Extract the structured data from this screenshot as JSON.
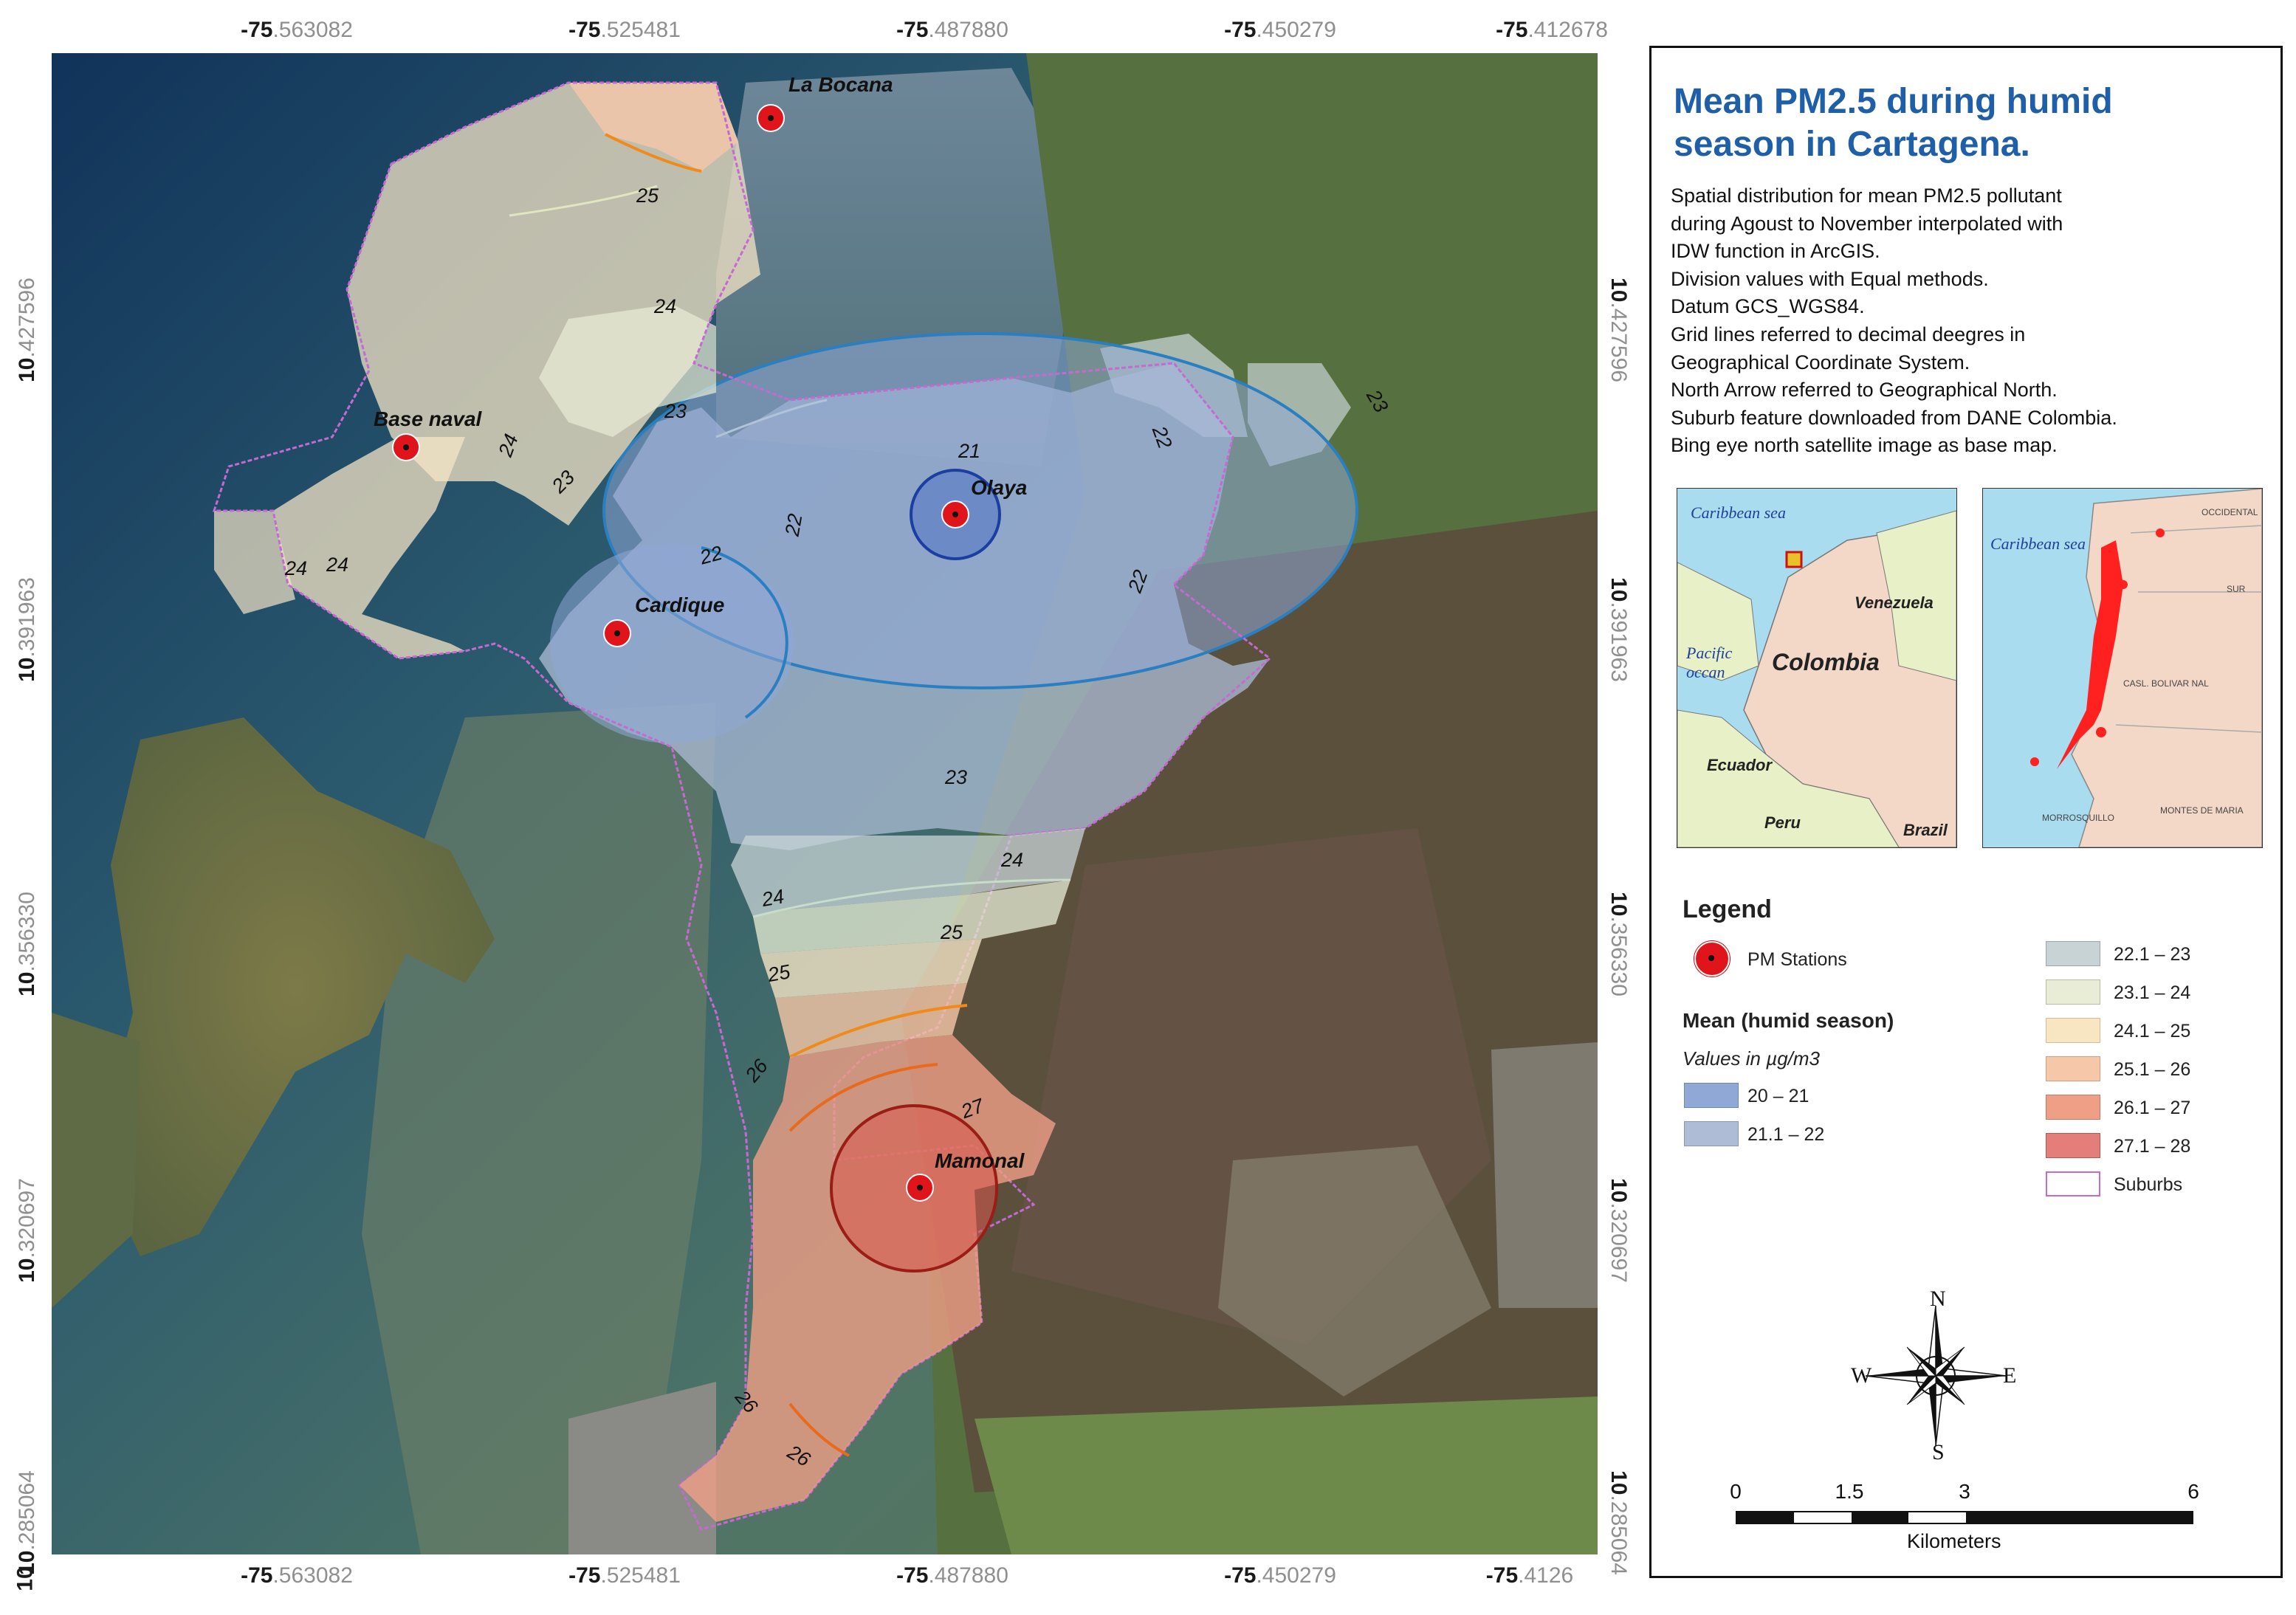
{
  "coords": {
    "lon_labels": [
      {
        "bold": "-75",
        "rest": ".563082"
      },
      {
        "bold": "-75",
        "rest": ".525481"
      },
      {
        "bold": "-75",
        "rest": ".487880"
      },
      {
        "bold": "-75",
        "rest": ".450279"
      },
      {
        "bold": "-75",
        "rest": ".412678"
      }
    ],
    "lon_labels_bottom_last": {
      "bold": "-75",
      "rest": ".4126"
    },
    "lat_labels": [
      {
        "bold": "10",
        "rest": ".427596"
      },
      {
        "bold": "10",
        "rest": ".391963"
      },
      {
        "bold": "10",
        "rest": ".356330"
      },
      {
        "bold": "10",
        "rest": ".320697"
      },
      {
        "bold": "10",
        "rest": ".285064"
      }
    ],
    "corner_bold": "10"
  },
  "map": {
    "stations": [
      {
        "name": "La Bocana"
      },
      {
        "name": "Base naval"
      },
      {
        "name": "Olaya"
      },
      {
        "name": "Cardique"
      },
      {
        "name": "Mamonal"
      }
    ],
    "contour_labels": [
      "25",
      "24",
      "23",
      "24",
      "23",
      "24",
      "24",
      "21",
      "22",
      "22",
      "22",
      "22",
      "23",
      "22",
      "23",
      "24",
      "24",
      "25",
      "25",
      "26",
      "27",
      "26",
      "26"
    ]
  },
  "panel": {
    "title_line1": "Mean PM2.5 during humid",
    "title_line2": "season in Cartagena.",
    "description": [
      "Spatial distribution for mean PM2.5 pollutant",
      "during Agoust to November interpolated with",
      "IDW function in ArcGIS.",
      "Division values with Equal methods.",
      "Datum GCS_WGS84.",
      "Grid lines referred to decimal deegres in",
      "Geographical Coordinate System.",
      "North Arrow referred to Geographical North.",
      "Suburb feature downloaded from DANE Colombia.",
      "Bing eye north satellite image as  base map."
    ],
    "inset1": {
      "caribbean": "Caribbean sea",
      "venezuela": "Venezuela",
      "pacific1": "Pacific",
      "pacific2": "occan",
      "colombia": "Colombia",
      "ecuador": "Ecuador",
      "peru": "Peru",
      "brazil": "Brazil"
    },
    "inset2": {
      "caribbean": "Caribbean sea",
      "occidental": "OCCIDENTAL",
      "sur": "SUR",
      "bolivar": "CASL. BOLIVAR NAL",
      "morrosquillo": "MORROSQUILLO",
      "montes": "MONTES DE MARIA"
    },
    "legend": {
      "title": "Legend",
      "stations_label": "PM Stations",
      "mean_title": "Mean (humid season)",
      "units": "Values in µg/m3",
      "classes_left": [
        {
          "label": "20 – 21",
          "color": "#8fa8d6"
        },
        {
          "label": "21.1 – 22",
          "color": "#aebcd6"
        }
      ],
      "classes_right": [
        {
          "label": "22.1 – 23",
          "color": "#c8d3d6"
        },
        {
          "label": "23.1 – 24",
          "color": "#e9edd6"
        },
        {
          "label": "24.1 – 25",
          "color": "#f8e5c2"
        },
        {
          "label": "25.1 – 26",
          "color": "#f6c7a8"
        },
        {
          "label": "26.1 – 27",
          "color": "#ef9f86"
        },
        {
          "label": "27.1 – 28",
          "color": "#e37e7a"
        },
        {
          "label": "Suburbs",
          "color": "#ffffff"
        }
      ]
    },
    "compass": {
      "n": "N",
      "s": "S",
      "e": "E",
      "w": "W"
    },
    "scale": {
      "labels": [
        "0",
        "1.5",
        "3",
        "6"
      ],
      "unit": "Kilometers"
    }
  }
}
